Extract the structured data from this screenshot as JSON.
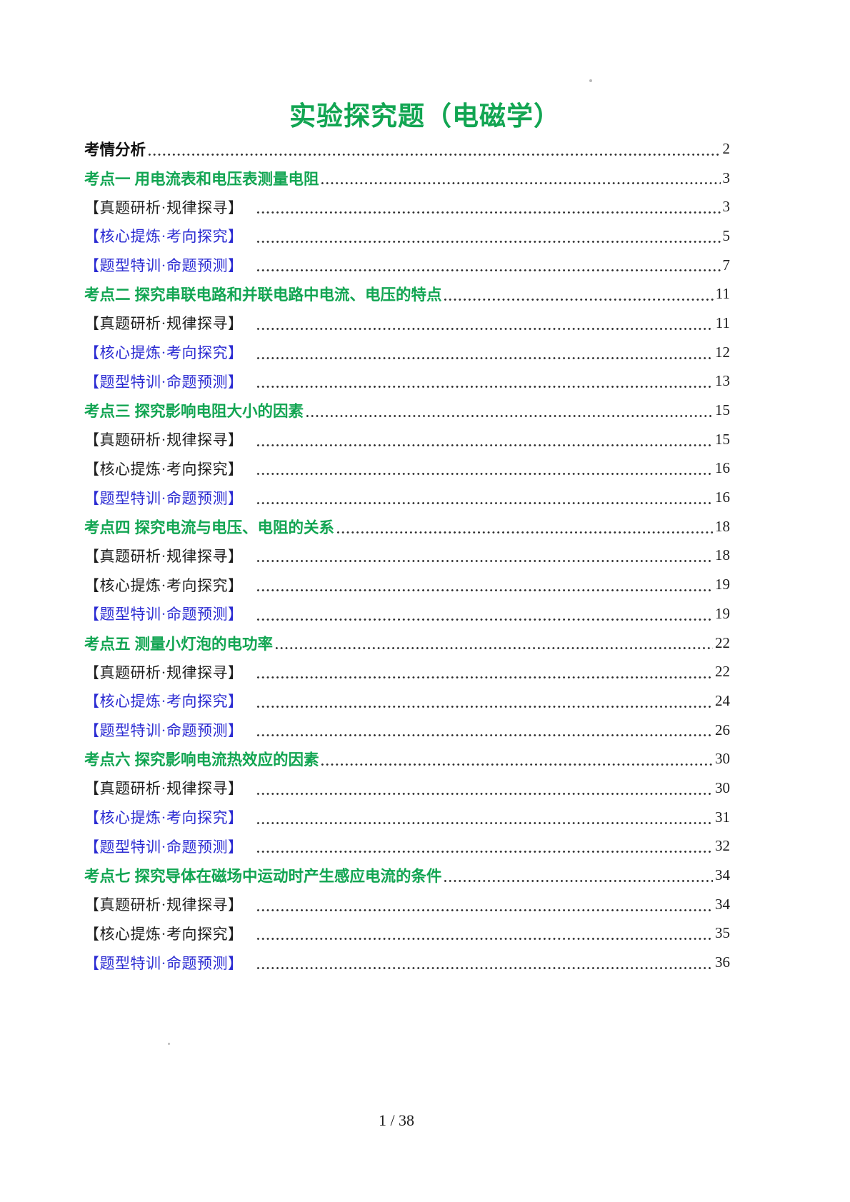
{
  "page": {
    "title": "实验探究题（电磁学）",
    "footer": "1 / 38"
  },
  "colors": {
    "heading_green": "#12a552",
    "sub_blue": "#2b2bd2",
    "text_black": "#1f1f1f",
    "dot_color": "#2e2e2e"
  },
  "toc": [
    {
      "label": "考情分析",
      "page": "2",
      "style": "analysis"
    },
    {
      "label": "考点一  用电流表和电压表测量电阻",
      "page": "3",
      "style": "section"
    },
    {
      "label": "【真题研析·规律探寻】",
      "page": "3",
      "style": "sub-black"
    },
    {
      "label": "【核心提炼·考向探究】",
      "page": "5",
      "style": "sub-blue"
    },
    {
      "label": "【题型特训·命题预测】",
      "page": "7",
      "style": "sub-blue"
    },
    {
      "label": "考点二  探究串联电路和并联电路中电流、电压的特点",
      "page": "11",
      "style": "section"
    },
    {
      "label": "【真题研析·规律探寻】",
      "page": "11",
      "style": "sub-black"
    },
    {
      "label": "【核心提炼·考向探究】",
      "page": "12",
      "style": "sub-blue"
    },
    {
      "label": "【题型特训·命题预测】",
      "page": "13",
      "style": "sub-blue"
    },
    {
      "label": "考点三 探究影响电阻大小的因素",
      "page": "15",
      "style": "section"
    },
    {
      "label": "【真题研析·规律探寻】",
      "page": "15",
      "style": "sub-black"
    },
    {
      "label": "【核心提炼·考向探究】",
      "page": "16",
      "style": "sub-black"
    },
    {
      "label": "【题型特训·命题预测】",
      "page": "16",
      "style": "sub-blue"
    },
    {
      "label": "考点四  探究电流与电压、电阻的关系",
      "page": "18",
      "style": "section"
    },
    {
      "label": "【真题研析·规律探寻】",
      "page": "18",
      "style": "sub-black"
    },
    {
      "label": "【核心提炼·考向探究】",
      "page": "19",
      "style": "sub-black"
    },
    {
      "label": "【题型特训·命题预测】",
      "page": "19",
      "style": "sub-blue"
    },
    {
      "label": "考点五  测量小灯泡的电功率",
      "page": "22",
      "style": "section"
    },
    {
      "label": "【真题研析·规律探寻】",
      "page": "22",
      "style": "sub-black"
    },
    {
      "label": "【核心提炼·考向探究】",
      "page": "24",
      "style": "sub-blue"
    },
    {
      "label": "【题型特训·命题预测】",
      "page": "26",
      "style": "sub-blue"
    },
    {
      "label": "考点六  探究影响电流热效应的因素",
      "page": "30",
      "style": "section"
    },
    {
      "label": "【真题研析·规律探寻】",
      "page": "30",
      "style": "sub-black"
    },
    {
      "label": "【核心提炼·考向探究】",
      "page": "31",
      "style": "sub-blue"
    },
    {
      "label": "【题型特训·命题预测】",
      "page": "32",
      "style": "sub-blue"
    },
    {
      "label": "考点七 探究导体在磁场中运动时产生感应电流的条件",
      "page": "34",
      "style": "section"
    },
    {
      "label": "【真题研析·规律探寻】",
      "page": "34",
      "style": "sub-black"
    },
    {
      "label": "【核心提炼·考向探究】",
      "page": "35",
      "style": "sub-black"
    },
    {
      "label": "【题型特训·命题预测】",
      "page": "36",
      "style": "sub-blue"
    }
  ]
}
